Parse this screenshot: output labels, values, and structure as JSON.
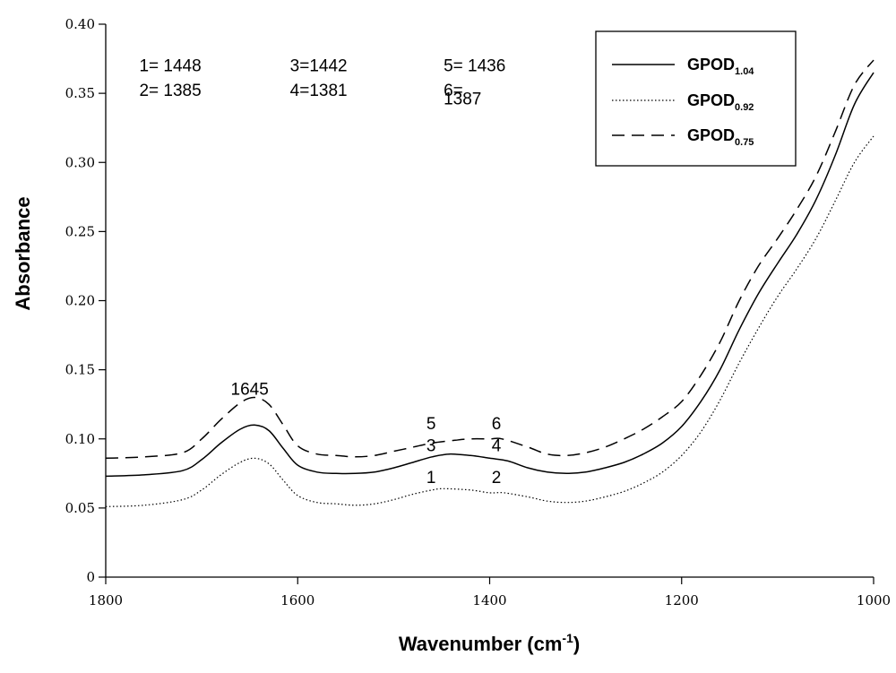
{
  "chart_data": {
    "type": "line",
    "title": "",
    "xlabel": "Wavenumber (cm",
    "xlabel_sup": "-1",
    "xlabel_close": ")",
    "ylabel": "Absorbance",
    "xlim": [
      1800,
      1000
    ],
    "ylim": [
      0,
      0.4
    ],
    "x_reversed": true,
    "grid": false,
    "legend_position": "top-right",
    "x_ticks": [
      1800,
      1600,
      1400,
      1200,
      1000
    ],
    "x_tick_labels": [
      "1800",
      "1600",
      "1400",
      "1200",
      "1000"
    ],
    "y_ticks": [
      0,
      0.05,
      0.1,
      0.15,
      0.2,
      0.25,
      0.3,
      0.35,
      0.4
    ],
    "y_tick_labels": [
      "0",
      "0.05",
      "0.10",
      "0.15",
      "0.20",
      "0.25",
      "0.30",
      "0.35",
      "0.40"
    ],
    "series": [
      {
        "name": "GPOD",
        "name_sub": "1.04",
        "style": "solid",
        "x": [
          1800,
          1760,
          1720,
          1700,
          1680,
          1660,
          1645,
          1630,
          1615,
          1600,
          1580,
          1560,
          1540,
          1520,
          1500,
          1480,
          1460,
          1442,
          1420,
          1400,
          1381,
          1360,
          1340,
          1320,
          1300,
          1280,
          1260,
          1240,
          1220,
          1200,
          1180,
          1160,
          1140,
          1120,
          1100,
          1080,
          1060,
          1040,
          1020,
          1000
        ],
        "y": [
          0.073,
          0.074,
          0.077,
          0.085,
          0.097,
          0.107,
          0.11,
          0.106,
          0.093,
          0.081,
          0.076,
          0.075,
          0.075,
          0.076,
          0.079,
          0.083,
          0.087,
          0.089,
          0.088,
          0.086,
          0.084,
          0.079,
          0.076,
          0.075,
          0.076,
          0.079,
          0.083,
          0.089,
          0.097,
          0.109,
          0.127,
          0.15,
          0.179,
          0.205,
          0.227,
          0.248,
          0.273,
          0.305,
          0.342,
          0.365
        ]
      },
      {
        "name": "GPOD",
        "name_sub": "0.92",
        "style": "dotted",
        "x": [
          1800,
          1760,
          1720,
          1700,
          1680,
          1660,
          1645,
          1630,
          1615,
          1600,
          1580,
          1560,
          1540,
          1520,
          1500,
          1480,
          1460,
          1448,
          1420,
          1400,
          1385,
          1360,
          1340,
          1320,
          1300,
          1280,
          1260,
          1240,
          1220,
          1200,
          1180,
          1160,
          1140,
          1120,
          1100,
          1080,
          1060,
          1040,
          1020,
          1000
        ],
        "y": [
          0.051,
          0.052,
          0.056,
          0.063,
          0.074,
          0.083,
          0.086,
          0.082,
          0.07,
          0.059,
          0.054,
          0.053,
          0.052,
          0.053,
          0.056,
          0.06,
          0.063,
          0.064,
          0.063,
          0.061,
          0.061,
          0.058,
          0.055,
          0.054,
          0.055,
          0.058,
          0.062,
          0.068,
          0.076,
          0.088,
          0.105,
          0.128,
          0.155,
          0.18,
          0.203,
          0.223,
          0.245,
          0.272,
          0.3,
          0.319
        ]
      },
      {
        "name": "GPOD",
        "name_sub": "0.75",
        "style": "dashed",
        "x": [
          1800,
          1760,
          1720,
          1700,
          1680,
          1660,
          1645,
          1630,
          1615,
          1600,
          1580,
          1560,
          1540,
          1520,
          1500,
          1480,
          1460,
          1436,
          1420,
          1400,
          1387,
          1360,
          1340,
          1320,
          1300,
          1280,
          1260,
          1240,
          1220,
          1200,
          1180,
          1160,
          1140,
          1120,
          1100,
          1080,
          1060,
          1040,
          1020,
          1000
        ],
        "y": [
          0.086,
          0.087,
          0.09,
          0.1,
          0.114,
          0.126,
          0.13,
          0.125,
          0.11,
          0.095,
          0.089,
          0.088,
          0.087,
          0.088,
          0.091,
          0.094,
          0.097,
          0.099,
          0.1,
          0.1,
          0.1,
          0.094,
          0.089,
          0.088,
          0.09,
          0.094,
          0.1,
          0.107,
          0.116,
          0.127,
          0.146,
          0.17,
          0.2,
          0.225,
          0.245,
          0.266,
          0.29,
          0.322,
          0.356,
          0.374
        ]
      }
    ],
    "annotations": [
      {
        "text": "1645",
        "x": 1650,
        "y": 0.132
      },
      {
        "text": "5",
        "x": 1461,
        "y": 0.107
      },
      {
        "text": "6",
        "x": 1393,
        "y": 0.107
      },
      {
        "text": "3",
        "x": 1461,
        "y": 0.091
      },
      {
        "text": "4",
        "x": 1393,
        "y": 0.091
      },
      {
        "text": "1",
        "x": 1461,
        "y": 0.068
      },
      {
        "text": "2",
        "x": 1393,
        "y": 0.068
      }
    ],
    "assignments": [
      {
        "text": "1= 1448",
        "x": 1765,
        "y": 0.366
      },
      {
        "text": "2= 1385",
        "x": 1765,
        "y": 0.348
      },
      {
        "text": "3=1442",
        "x": 1608,
        "y": 0.366
      },
      {
        "text": "4=1381",
        "x": 1608,
        "y": 0.348
      },
      {
        "text": "5= 1436",
        "x": 1448,
        "y": 0.366
      },
      {
        "text": "6=",
        "x": 1448,
        "y": 0.348
      },
      {
        "text": "1387",
        "x": 1448,
        "y": 0.342
      }
    ]
  }
}
